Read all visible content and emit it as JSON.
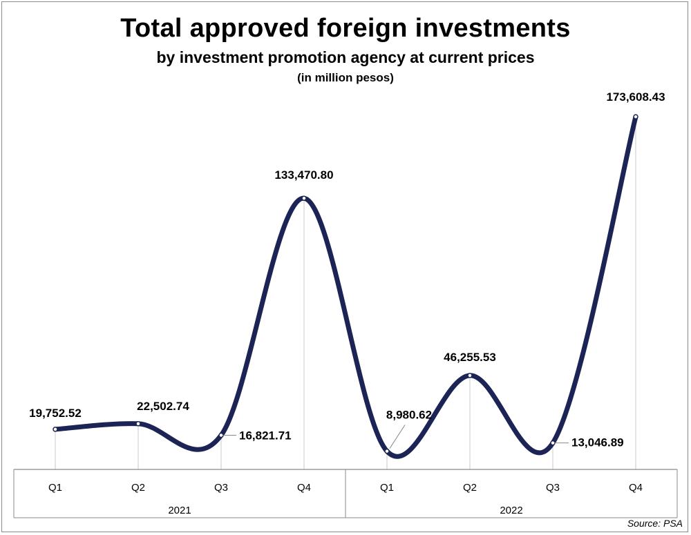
{
  "title": "Total approved foreign investments",
  "subtitle": "by investment promotion agency at current prices",
  "unit_note": "(in million  pesos)",
  "source": "Source: PSA",
  "colors": {
    "line": "#1b2455",
    "axis": "#8a8a8a",
    "text": "#000000"
  },
  "chart_data": {
    "type": "line",
    "smooth": true,
    "categories": [
      "Q1",
      "Q2",
      "Q3",
      "Q4",
      "Q1",
      "Q2",
      "Q3",
      "Q4"
    ],
    "groups": [
      {
        "label": "2021",
        "categories": [
          "Q1",
          "Q2",
          "Q3",
          "Q4"
        ]
      },
      {
        "label": "2022",
        "categories": [
          "Q1",
          "Q2",
          "Q3",
          "Q4"
        ]
      }
    ],
    "values": [
      19752.52,
      22502.74,
      16821.71,
      133470.8,
      8980.62,
      46255.53,
      13046.89,
      173608.43
    ],
    "data_labels": [
      "19,752.52",
      "22,502.74",
      "16,821.71",
      "133,470.80",
      "8,980.62",
      "46,255.53",
      "13,046.89",
      "173,608.43"
    ],
    "ylim": [
      0,
      175000
    ],
    "grid": false,
    "legend": "none"
  }
}
